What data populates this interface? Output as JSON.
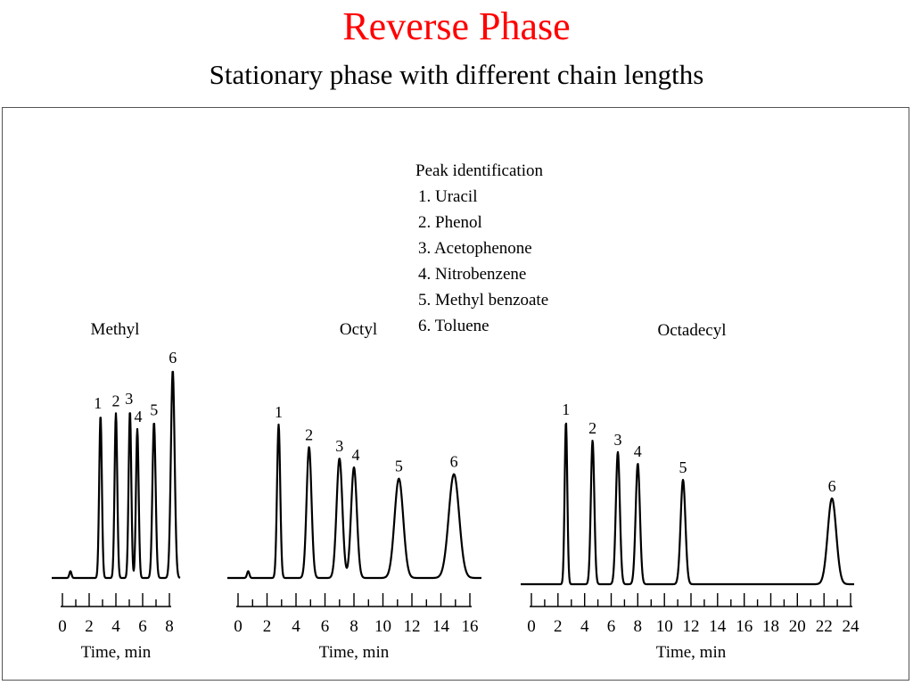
{
  "slide": {
    "title": "Reverse Phase",
    "subtitle": "Stationary phase with different chain lengths"
  },
  "legend": {
    "title": "Peak identification",
    "items": [
      "1.  Uracil",
      "2.  Phenol",
      "3.  Acetophenone",
      "4.  Nitrobenzene",
      "5.  Methyl benzoate",
      "6.  Toluene"
    ]
  },
  "chart_data": [
    {
      "type": "line",
      "title": "Methyl",
      "xlabel": "Time, min",
      "ylabel": "",
      "xlim": [
        0,
        8
      ],
      "x_ticks": [
        0,
        2,
        4,
        6,
        8
      ],
      "grid": false,
      "peaks": [
        {
          "label": "1",
          "x": 2.85,
          "height": 0.72
        },
        {
          "label": "2",
          "x": 4.0,
          "height": 0.73
        },
        {
          "label": "3",
          "x": 5.05,
          "height": 0.74
        },
        {
          "label": "4",
          "x": 5.6,
          "height": 0.66
        },
        {
          "label": "5",
          "x": 6.85,
          "height": 0.69
        },
        {
          "label": "6",
          "x": 8.25,
          "height": 0.92
        }
      ]
    },
    {
      "type": "line",
      "title": "Octyl",
      "xlabel": "Time, min",
      "ylabel": "",
      "xlim": [
        0,
        16
      ],
      "x_ticks": [
        0,
        2,
        4,
        6,
        8,
        10,
        12,
        14,
        16
      ],
      "grid": false,
      "peaks": [
        {
          "label": "1",
          "x": 2.8,
          "height": 0.68
        },
        {
          "label": "2",
          "x": 4.9,
          "height": 0.58
        },
        {
          "label": "3",
          "x": 7.0,
          "height": 0.53
        },
        {
          "label": "4",
          "x": 8.0,
          "height": 0.49
        },
        {
          "label": "5",
          "x": 11.1,
          "height": 0.44
        },
        {
          "label": "6",
          "x": 14.9,
          "height": 0.46
        }
      ]
    },
    {
      "type": "line",
      "title": "Octadecyl",
      "xlabel": "Time, min",
      "ylabel": "",
      "xlim": [
        0,
        24
      ],
      "x_ticks": [
        0,
        2,
        4,
        6,
        8,
        10,
        12,
        14,
        16,
        18,
        20,
        22,
        24
      ],
      "grid": false,
      "peaks": [
        {
          "label": "1",
          "x": 2.6,
          "height": 0.7
        },
        {
          "label": "2",
          "x": 4.6,
          "height": 0.62
        },
        {
          "label": "3",
          "x": 6.5,
          "height": 0.57
        },
        {
          "label": "4",
          "x": 8.0,
          "height": 0.52
        },
        {
          "label": "5",
          "x": 11.4,
          "height": 0.45
        },
        {
          "label": "6",
          "x": 22.6,
          "height": 0.37
        }
      ]
    }
  ]
}
